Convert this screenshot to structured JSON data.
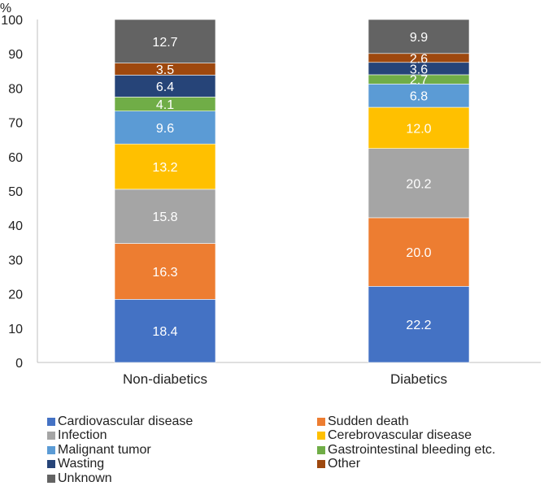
{
  "chart_data": {
    "type": "bar",
    "stacked": true,
    "categories": [
      "Non-diabetics",
      "Diabetics"
    ],
    "ylabel": "%",
    "ylim": [
      0,
      100
    ],
    "yticks": [
      0,
      10,
      20,
      30,
      40,
      50,
      60,
      70,
      80,
      90,
      100
    ],
    "legend_position": "bottom",
    "series": [
      {
        "name": "Cardiovascular disease",
        "color": "#4472C4",
        "values": [
          18.4,
          22.2
        ],
        "labels": [
          "18.4",
          "22.2"
        ]
      },
      {
        "name": "Sudden death",
        "color": "#ED7D31",
        "values": [
          16.3,
          20.0
        ],
        "labels": [
          "16.3",
          "20.0"
        ]
      },
      {
        "name": "Infection",
        "color": "#A5A5A5",
        "values": [
          15.8,
          20.2
        ],
        "labels": [
          "15.8",
          "20.2"
        ]
      },
      {
        "name": "Cerebrovascular disease",
        "color": "#FFC000",
        "values": [
          13.2,
          12.0
        ],
        "labels": [
          "13.2",
          "12.0"
        ]
      },
      {
        "name": "Malignant tumor",
        "color": "#5B9BD5",
        "values": [
          9.6,
          6.8
        ],
        "labels": [
          "9.6",
          "6.8"
        ]
      },
      {
        "name": "Gastrointestinal bleeding etc.",
        "color": "#70AD47",
        "values": [
          4.1,
          2.7
        ],
        "labels": [
          "4.1",
          "2.7"
        ]
      },
      {
        "name": "Wasting",
        "color": "#264478",
        "values": [
          6.4,
          3.6
        ],
        "labels": [
          "6.4",
          "3.6"
        ]
      },
      {
        "name": "Other",
        "color": "#9E480E",
        "values": [
          3.5,
          2.6
        ],
        "labels": [
          "3.5",
          "2.6"
        ]
      },
      {
        "name": "Unknown",
        "color": "#636363",
        "values": [
          12.7,
          9.9
        ],
        "labels": [
          "12.7",
          "9.9"
        ]
      }
    ]
  }
}
